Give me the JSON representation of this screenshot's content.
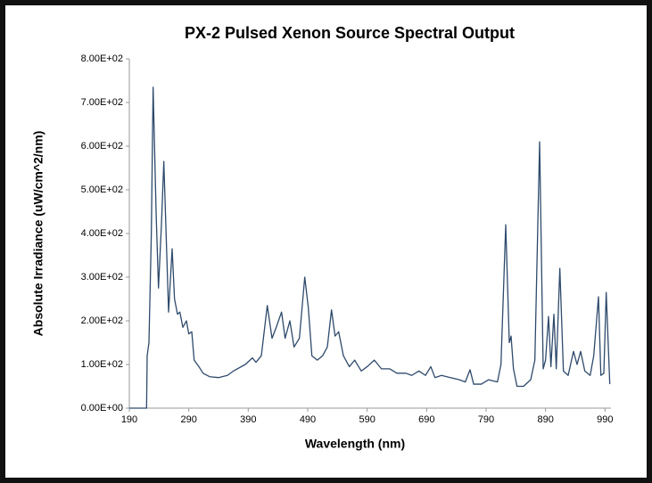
{
  "chart_data": {
    "type": "line",
    "title": "PX-2 Pulsed Xenon Source Spectral Output",
    "x_label": "Wavelength (nm)",
    "y_label": "Absolute Irradiance (uW/cm^2/nm)",
    "color": "#2e4a6b",
    "x": [
      190,
      200,
      210,
      219,
      220,
      223,
      227,
      230,
      235,
      239,
      244,
      248,
      253,
      256,
      262,
      266,
      271,
      275,
      280,
      286,
      290,
      295,
      299,
      307,
      314,
      325,
      340,
      355,
      365,
      385,
      397,
      403,
      412,
      422,
      430,
      437,
      446,
      452,
      460,
      467,
      476,
      485,
      491,
      497,
      506,
      515,
      523,
      530,
      536,
      542,
      550,
      560,
      569,
      580,
      590,
      602,
      614,
      628,
      640,
      655,
      665,
      677,
      688,
      697,
      704,
      715,
      730,
      745,
      755,
      763,
      769,
      782,
      794,
      809,
      815,
      823,
      829,
      832,
      836,
      842,
      853,
      865,
      872,
      880,
      886,
      890,
      895,
      899,
      904,
      908,
      914,
      920,
      928,
      937,
      943,
      949,
      956,
      965,
      971,
      979,
      983,
      988,
      992,
      998
    ],
    "values": [
      0,
      0,
      0,
      0,
      120,
      150,
      400,
      735,
      450,
      275,
      420,
      565,
      350,
      220,
      365,
      250,
      215,
      220,
      185,
      200,
      170,
      175,
      110,
      95,
      80,
      72,
      70,
      75,
      85,
      100,
      115,
      105,
      120,
      235,
      160,
      185,
      220,
      160,
      200,
      140,
      160,
      300,
      230,
      120,
      110,
      120,
      140,
      225,
      165,
      175,
      120,
      95,
      110,
      85,
      95,
      110,
      90,
      90,
      80,
      80,
      75,
      85,
      75,
      95,
      70,
      75,
      70,
      65,
      60,
      88,
      55,
      55,
      65,
      60,
      100,
      420,
      150,
      165,
      90,
      50,
      50,
      65,
      110,
      610,
      90,
      110,
      210,
      95,
      215,
      90,
      320,
      85,
      75,
      130,
      100,
      130,
      85,
      75,
      120,
      255,
      75,
      80,
      265,
      55
    ],
    "xlim": [
      190,
      1000
    ],
    "ylim": [
      0,
      800
    ],
    "xticks": [
      190,
      290,
      390,
      490,
      590,
      690,
      790,
      890,
      990
    ],
    "yticks": [
      {
        "value": 0,
        "label": "0.00E+00"
      },
      {
        "value": 100,
        "label": "1.00E+02"
      },
      {
        "value": 200,
        "label": "2.00E+02"
      },
      {
        "value": 300,
        "label": "3.00E+02"
      },
      {
        "value": 400,
        "label": "4.00E+02"
      },
      {
        "value": 500,
        "label": "5.00E+02"
      },
      {
        "value": 600,
        "label": "6.00E+02"
      },
      {
        "value": 700,
        "label": "7.00E+02"
      },
      {
        "value": 800,
        "label": "8.00E+02"
      }
    ]
  }
}
